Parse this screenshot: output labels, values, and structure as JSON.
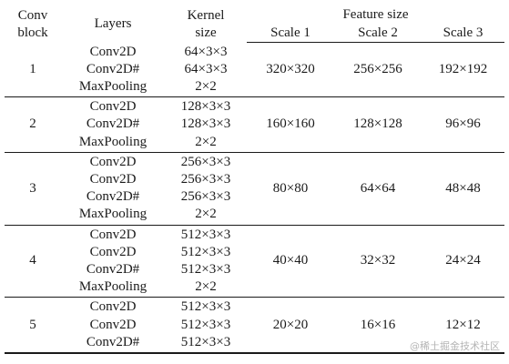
{
  "header": {
    "conv_block": [
      "Conv",
      "block"
    ],
    "layers": "Layers",
    "kernel_size": [
      "Kernel",
      "size"
    ],
    "feature_size": "Feature size",
    "scales": [
      "Scale 1",
      "Scale 2",
      "Scale 3"
    ]
  },
  "blocks": [
    {
      "id": "1",
      "layers": [
        "Conv2D",
        "Conv2D#",
        "MaxPooling"
      ],
      "kernels": [
        "64×3×3",
        "64×3×3",
        "2×2"
      ],
      "scales": [
        "320×320",
        "256×256",
        "192×192"
      ]
    },
    {
      "id": "2",
      "layers": [
        "Conv2D",
        "Conv2D#",
        "MaxPooling"
      ],
      "kernels": [
        "128×3×3",
        "128×3×3",
        "2×2"
      ],
      "scales": [
        "160×160",
        "128×128",
        "96×96"
      ]
    },
    {
      "id": "3",
      "layers": [
        "Conv2D",
        "Conv2D",
        "Conv2D#",
        "MaxPooling"
      ],
      "kernels": [
        "256×3×3",
        "256×3×3",
        "256×3×3",
        "2×2"
      ],
      "scales": [
        "80×80",
        "64×64",
        "48×48"
      ]
    },
    {
      "id": "4",
      "layers": [
        "Conv2D",
        "Conv2D",
        "Conv2D#",
        "MaxPooling"
      ],
      "kernels": [
        "512×3×3",
        "512×3×3",
        "512×3×3",
        "2×2"
      ],
      "scales": [
        "40×40",
        "32×32",
        "24×24"
      ]
    },
    {
      "id": "5",
      "layers": [
        "Conv2D",
        "Conv2D",
        "Conv2D#"
      ],
      "kernels": [
        "512×3×3",
        "512×3×3",
        "512×3×3"
      ],
      "scales": [
        "20×20",
        "16×16",
        "12×12"
      ]
    }
  ],
  "watermark": "@稀土掘金技术社区"
}
